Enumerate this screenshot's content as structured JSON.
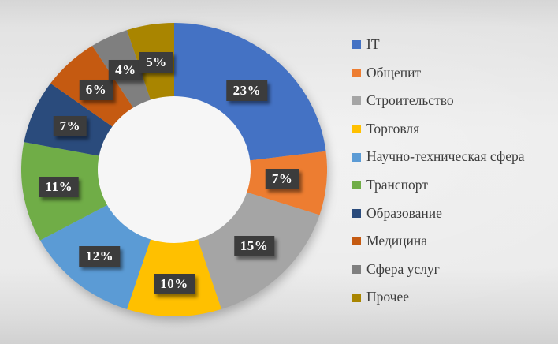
{
  "chart_data": {
    "type": "pie",
    "subtype": "doughnut",
    "title": "",
    "legend_position": "right",
    "direction": "clockwise",
    "start_angle_deg": 0,
    "hole_ratio": 0.5,
    "categories": [
      "IT",
      "Общепит",
      "Строительство",
      "Торговля",
      "Научно-техническая сфера",
      "Транспорт",
      "Образование",
      "Медицина",
      "Сфера услуг",
      "Прочее"
    ],
    "values": [
      23,
      7,
      15,
      10,
      12,
      11,
      7,
      6,
      4,
      5
    ],
    "data_labels": [
      "23%",
      "7%",
      "15%",
      "10%",
      "12%",
      "11%",
      "7%",
      "6%",
      "4%",
      "5%"
    ],
    "colors": [
      "#4472C4",
      "#ED7D31",
      "#A5A5A5",
      "#FFC000",
      "#5B9BD5",
      "#70AD47",
      "#2A4B7C",
      "#C55A11",
      "#7F7F7F",
      "#A98500"
    ]
  },
  "style": {
    "data_label_bg": "#3C3C3C",
    "data_label_text": "#FFFFFF",
    "legend_text_color": "#3D3D3D",
    "hole_fill": "#F6F6F6"
  }
}
